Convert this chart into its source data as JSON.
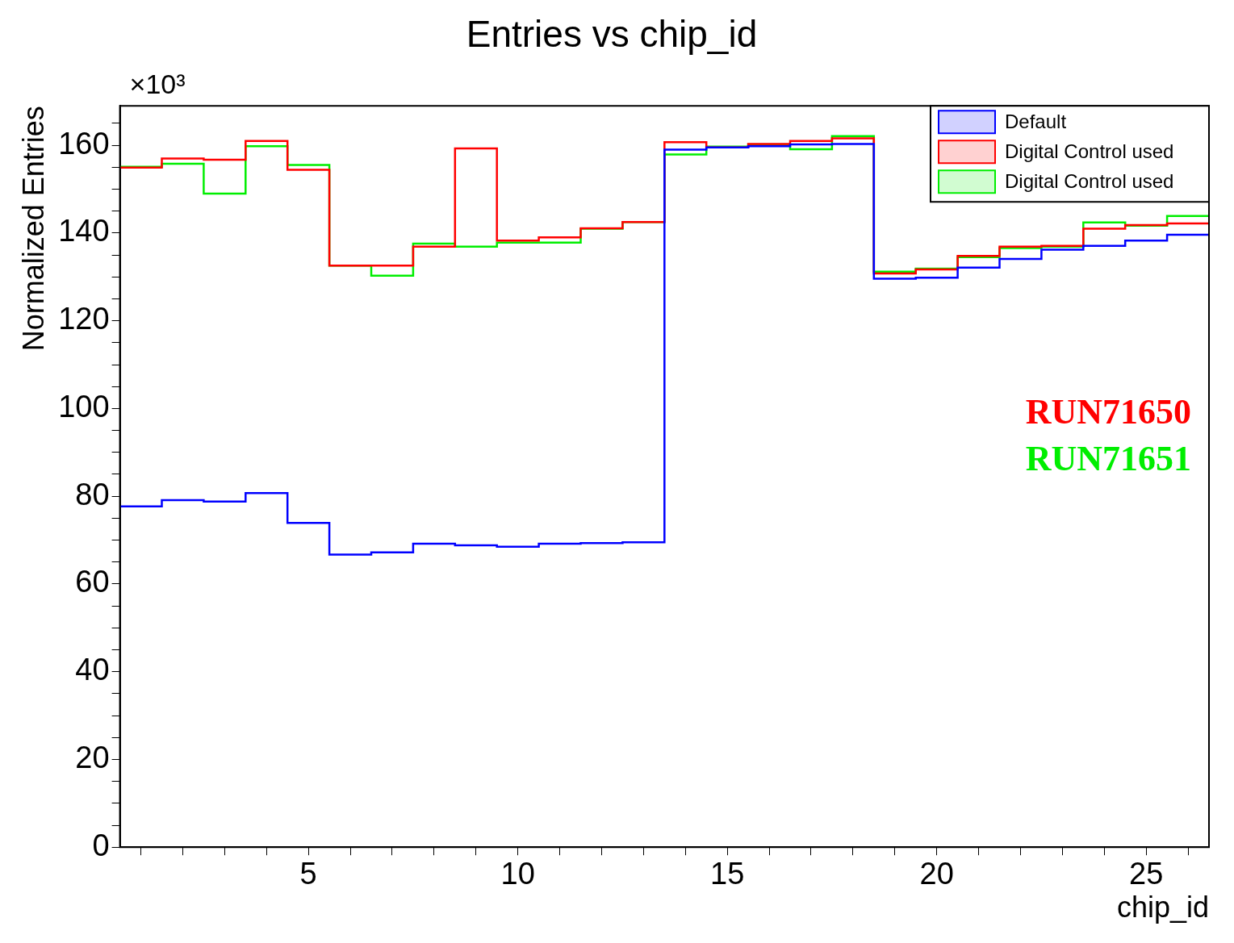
{
  "chart_data": {
    "type": "histogram",
    "title": "Entries vs chip_id",
    "xlabel": "chip_id",
    "ylabel": "Normalized Entries",
    "bins": [
      0.5,
      1.5,
      2.5,
      3.5,
      4.5,
      5.5,
      6.5,
      7.5,
      8.5,
      9.5,
      10.5,
      11.5,
      12.5,
      13.5,
      14.5,
      15.5,
      16.5,
      17.5,
      18.5,
      19.5,
      20.5,
      21.5,
      22.5,
      23.5,
      24.5,
      25.5,
      26.5
    ],
    "series": [
      {
        "name": "Default",
        "color": "#0000ff",
        "values": [
          77.7,
          79.1,
          78.8,
          80.7,
          73.9,
          66.7,
          67.2,
          69.2,
          68.8,
          68.5,
          69.2,
          69.3,
          69.5,
          159.0,
          159.5,
          159.8,
          160.2,
          160.3,
          129.6,
          129.8,
          132.1,
          134.1,
          136.2,
          137.1,
          138.3,
          139.6
        ]
      },
      {
        "name": "Digital Control used",
        "color": "#ff0000",
        "values": [
          154.9,
          157.0,
          156.7,
          161.0,
          154.4,
          132.6,
          132.6,
          136.9,
          159.3,
          138.3,
          139.0,
          141.1,
          142.5,
          160.7,
          159.5,
          160.3,
          161.0,
          161.6,
          130.8,
          131.7,
          134.8,
          136.9,
          137.1,
          141.0,
          141.8,
          142.2
        ]
      },
      {
        "name": "Digital Control used",
        "color": "#00ee00",
        "values": [
          155.1,
          155.8,
          149.0,
          159.8,
          155.5,
          132.6,
          130.3,
          137.6,
          136.9,
          137.8,
          137.8,
          141.0,
          142.5,
          157.9,
          159.7,
          160.2,
          159.1,
          162.1,
          131.2,
          131.9,
          134.5,
          136.6,
          136.9,
          142.4,
          141.7,
          143.9
        ]
      }
    ],
    "xlim": [
      0.5,
      26.5
    ],
    "xticks": [
      {
        "value": 1,
        "label": null
      },
      {
        "value": 2,
        "label": null
      },
      {
        "value": 3,
        "label": null
      },
      {
        "value": 4,
        "label": null
      },
      5,
      {
        "value": 6,
        "label": null
      },
      {
        "value": 7,
        "label": null
      },
      {
        "value": 8,
        "label": null
      },
      {
        "value": 9,
        "label": null
      },
      10,
      {
        "value": 11,
        "label": null
      },
      {
        "value": 12,
        "label": null
      },
      {
        "value": 13,
        "label": null
      },
      {
        "value": 14,
        "label": null
      },
      15,
      {
        "value": 16,
        "label": null
      },
      {
        "value": 17,
        "label": null
      },
      {
        "value": 18,
        "label": null
      },
      {
        "value": 19,
        "label": null
      },
      20,
      {
        "value": 21,
        "label": null
      },
      {
        "value": 22,
        "label": null
      },
      {
        "value": 23,
        "label": null
      },
      {
        "value": 24,
        "label": null
      },
      25,
      {
        "value": 26,
        "label": null
      }
    ],
    "ylim": [
      0,
      169
    ],
    "yticks": [
      0,
      {
        "value": 5,
        "label": null
      },
      {
        "value": 10,
        "label": null
      },
      {
        "value": 15,
        "label": null
      },
      20,
      {
        "value": 25,
        "label": null
      },
      {
        "value": 30,
        "label": null
      },
      {
        "value": 35,
        "label": null
      },
      40,
      {
        "value": 45,
        "label": null
      },
      {
        "value": 50,
        "label": null
      },
      {
        "value": 55,
        "label": null
      },
      60,
      {
        "value": 65,
        "label": null
      },
      {
        "value": 70,
        "label": null
      },
      {
        "value": 75,
        "label": null
      },
      80,
      {
        "value": 85,
        "label": null
      },
      {
        "value": 90,
        "label": null
      },
      {
        "value": 95,
        "label": null
      },
      100,
      {
        "value": 105,
        "label": null
      },
      {
        "value": 110,
        "label": null
      },
      {
        "value": 115,
        "label": null
      },
      120,
      {
        "value": 125,
        "label": null
      },
      {
        "value": 130,
        "label": null
      },
      {
        "value": 135,
        "label": null
      },
      140,
      {
        "value": 145,
        "label": null
      },
      {
        "value": 150,
        "label": null
      },
      {
        "value": 155,
        "label": null
      },
      160,
      {
        "value": 165,
        "label": null
      }
    ],
    "grid": false,
    "legend": "top right",
    "annotations": [
      "×10³",
      "RUN71650",
      "RUN71651"
    ]
  }
}
